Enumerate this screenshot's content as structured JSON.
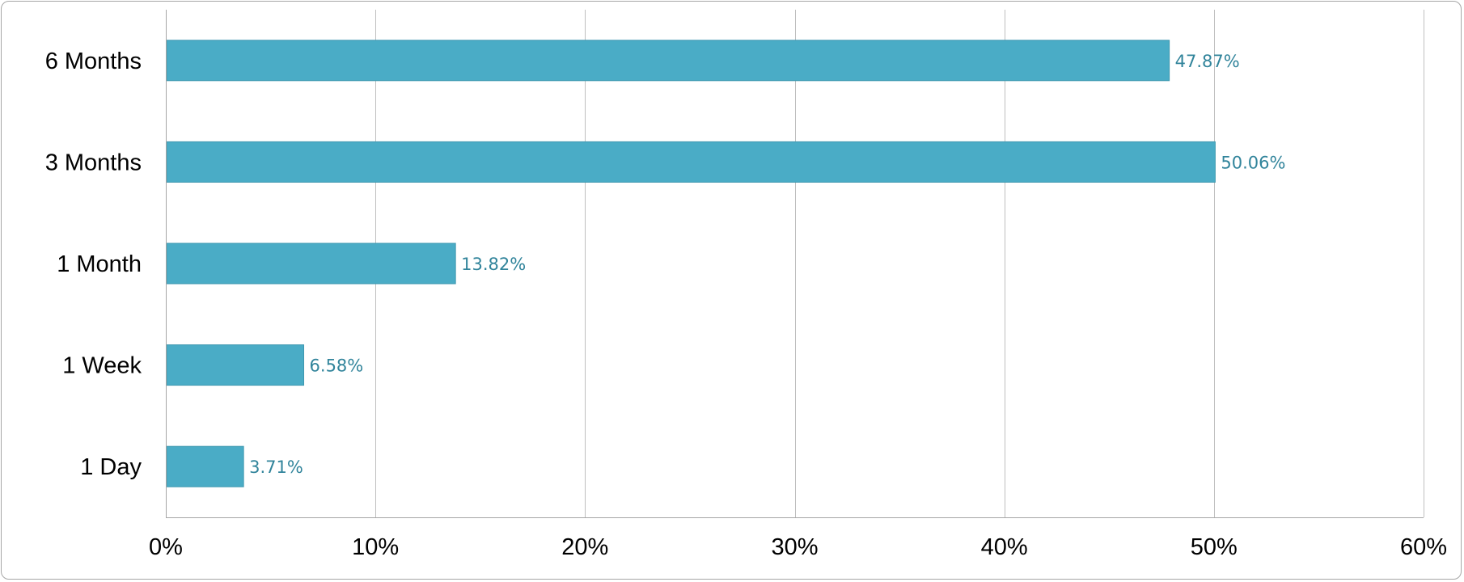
{
  "chart_data": {
    "type": "bar",
    "orientation": "horizontal",
    "categories": [
      "1 Day",
      "1 Week",
      "1 Month",
      "3 Months",
      "6 Months"
    ],
    "values": [
      3.71,
      6.58,
      13.82,
      50.06,
      47.87
    ],
    "value_labels": [
      "3.71%",
      "6.58%",
      "13.82%",
      "50.06%",
      "47.87%"
    ],
    "x_ticks": [
      0,
      10,
      20,
      30,
      40,
      50,
      60
    ],
    "x_tick_labels": [
      "0%",
      "10%",
      "20%",
      "30%",
      "40%",
      "50%",
      "60%"
    ],
    "xlim": [
      0,
      60
    ],
    "title": "",
    "xlabel": "",
    "ylabel": "",
    "grid": "vertical",
    "legend": "none",
    "colors": {
      "bar": "#4aacc6",
      "bar_border": "#3f98b0",
      "value_label": "#31849b",
      "grid": "#bfbfbf",
      "axis": "#a6a6a6"
    }
  }
}
